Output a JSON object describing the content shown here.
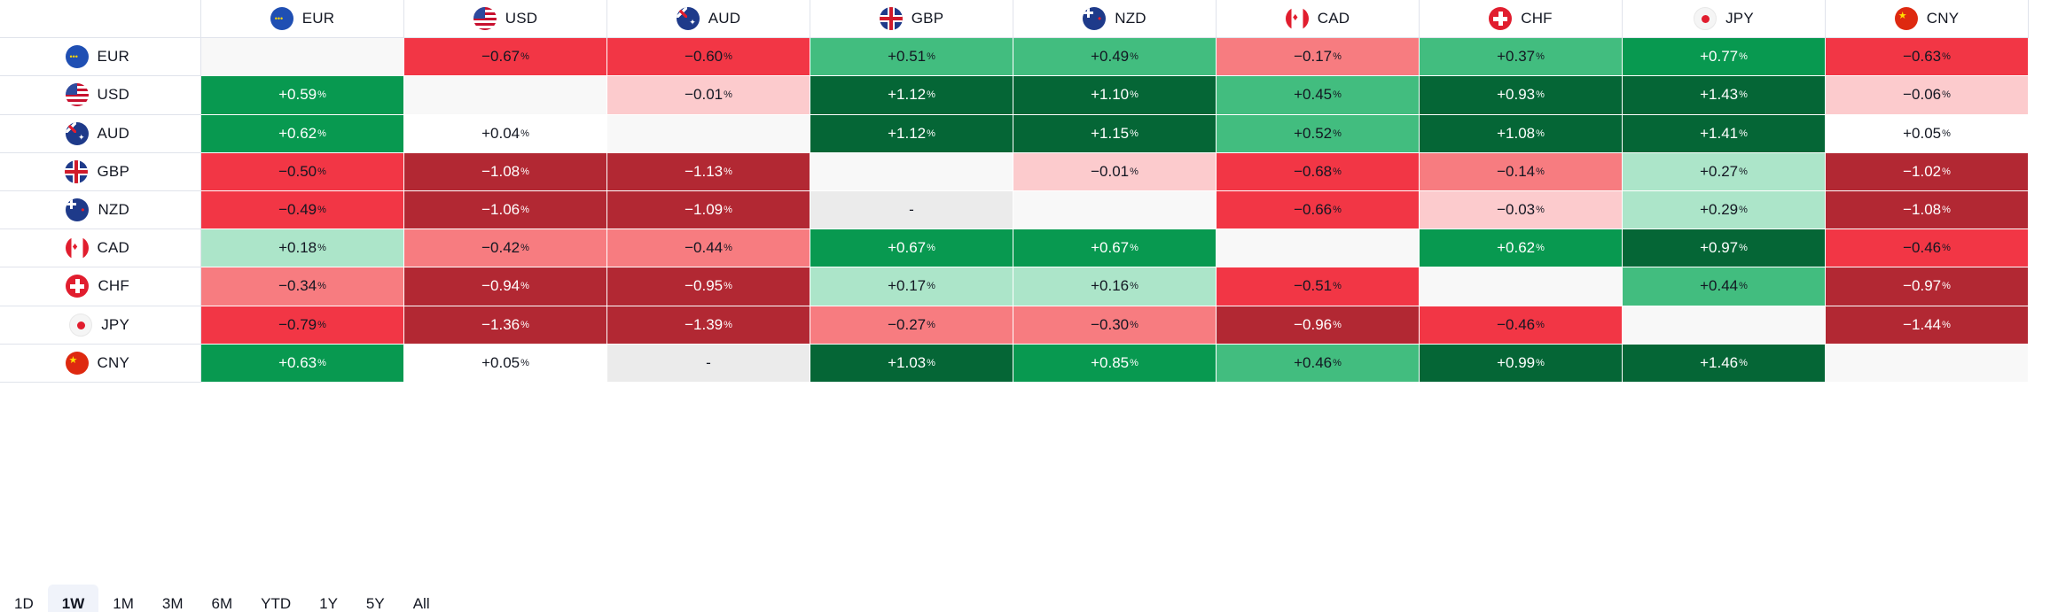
{
  "columns": [
    {
      "code": "EUR",
      "flag": "eu-flag"
    },
    {
      "code": "USD",
      "flag": "us-flag"
    },
    {
      "code": "AUD",
      "flag": "au-flag"
    },
    {
      "code": "GBP",
      "flag": "gb-flag"
    },
    {
      "code": "NZD",
      "flag": "nz-flag"
    },
    {
      "code": "CAD",
      "flag": "ca-flag"
    },
    {
      "code": "CHF",
      "flag": "ch-flag"
    },
    {
      "code": "JPY",
      "flag": "jp-flag"
    },
    {
      "code": "CNY",
      "flag": "cn-flag"
    }
  ],
  "rows": [
    {
      "code": "EUR",
      "flag": "eu-flag",
      "cells": [
        "",
        "−0.67",
        "−0.60",
        "+0.51",
        "+0.49",
        "−0.17",
        "+0.37",
        "+0.77",
        "−0.63"
      ]
    },
    {
      "code": "USD",
      "flag": "us-flag",
      "cells": [
        "+0.59",
        "",
        "−0.01",
        "+1.12",
        "+1.10",
        "+0.45",
        "+0.93",
        "+1.43",
        "−0.06"
      ]
    },
    {
      "code": "AUD",
      "flag": "au-flag",
      "cells": [
        "+0.62",
        "+0.04",
        "",
        "+1.12",
        "+1.15",
        "+0.52",
        "+1.08",
        "+1.41",
        "+0.05"
      ]
    },
    {
      "code": "GBP",
      "flag": "gb-flag",
      "cells": [
        "−0.50",
        "−1.08",
        "−1.13",
        "",
        "−0.01",
        "−0.68",
        "−0.14",
        "+0.27",
        "−1.02"
      ]
    },
    {
      "code": "NZD",
      "flag": "nz-flag",
      "cells": [
        "−0.49",
        "−1.06",
        "−1.09",
        "-",
        "",
        "−0.66",
        "−0.03",
        "+0.29",
        "−1.08"
      ]
    },
    {
      "code": "CAD",
      "flag": "ca-flag",
      "cells": [
        "+0.18",
        "−0.42",
        "−0.44",
        "+0.67",
        "+0.67",
        "",
        "+0.62",
        "+0.97",
        "−0.46"
      ]
    },
    {
      "code": "CHF",
      "flag": "ch-flag",
      "cells": [
        "−0.34",
        "−0.94",
        "−0.95",
        "+0.17",
        "+0.16",
        "−0.51",
        "",
        "+0.44",
        "−0.97"
      ]
    },
    {
      "code": "JPY",
      "flag": "jp-flag",
      "cells": [
        "−0.79",
        "−1.36",
        "−1.39",
        "−0.27",
        "−0.30",
        "−0.96",
        "−0.46",
        "",
        "−1.44"
      ]
    },
    {
      "code": "CNY",
      "flag": "cn-flag",
      "cells": [
        "+0.63",
        "+0.05",
        "-",
        "+1.03",
        "+0.85",
        "+0.46",
        "+0.99",
        "+1.46",
        ""
      ]
    }
  ],
  "percent_sign": "%",
  "colors": {
    "strong_pos": "#056636",
    "pos": "#089950",
    "mid_pos": "#42bd7f",
    "light_pos": "#ace5c9",
    "neutral": "#ffffff",
    "diag": "#f8f8f8",
    "nodata": "#ebebeb",
    "light_neg": "#fccbcd",
    "mid_neg": "#f77c80",
    "neg": "#f23645",
    "strong_neg": "#b22833"
  },
  "period_tabs": [
    "1D",
    "1W",
    "1M",
    "3M",
    "6M",
    "YTD",
    "1Y",
    "5Y",
    "All"
  ],
  "active_period": "1W"
}
